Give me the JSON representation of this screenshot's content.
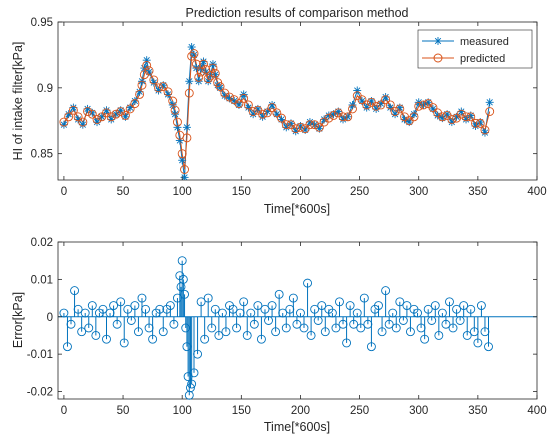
{
  "chart_data": [
    {
      "type": "line",
      "title": "Prediction results of comparison method",
      "xlabel": "Time[*600s]",
      "ylabel": "HI of intake filter[kPa]",
      "xlim": [
        -5,
        400
      ],
      "ylim": [
        0.83,
        0.95
      ],
      "xticks": [
        0,
        50,
        100,
        150,
        200,
        250,
        300,
        350,
        400
      ],
      "yticks": [
        0.85,
        0.9,
        0.95
      ],
      "ytick_labels": [
        "0.85",
        "0.9",
        "0.95"
      ],
      "grid": false,
      "legend_position": "top-right",
      "colors": {
        "measured": "#0072BD",
        "predicted": "#D95319"
      },
      "series": [
        {
          "name": "measured",
          "marker": "asterisk"
        },
        {
          "name": "predicted",
          "marker": "circle"
        }
      ],
      "x": [
        0,
        4,
        8,
        12,
        16,
        20,
        24,
        28,
        32,
        36,
        40,
        44,
        48,
        52,
        56,
        60,
        64,
        66,
        68,
        70,
        72,
        76,
        80,
        84,
        88,
        92,
        94,
        96,
        98,
        100,
        102,
        104,
        106,
        108,
        110,
        112,
        114,
        116,
        118,
        120,
        122,
        124,
        126,
        128,
        130,
        132,
        136,
        140,
        144,
        148,
        152,
        156,
        160,
        164,
        168,
        172,
        176,
        180,
        184,
        188,
        192,
        196,
        200,
        204,
        208,
        212,
        216,
        220,
        224,
        228,
        232,
        236,
        240,
        244,
        248,
        252,
        256,
        260,
        264,
        268,
        272,
        276,
        280,
        284,
        288,
        292,
        296,
        300,
        304,
        308,
        312,
        316,
        320,
        324,
        328,
        332,
        336,
        340,
        344,
        348,
        352,
        356,
        360
      ],
      "measured": [
        0.872,
        0.88,
        0.885,
        0.876,
        0.872,
        0.884,
        0.881,
        0.874,
        0.878,
        0.883,
        0.876,
        0.88,
        0.883,
        0.878,
        0.885,
        0.89,
        0.897,
        0.905,
        0.915,
        0.921,
        0.912,
        0.904,
        0.898,
        0.902,
        0.895,
        0.887,
        0.88,
        0.87,
        0.86,
        0.845,
        0.832,
        0.87,
        0.905,
        0.931,
        0.925,
        0.915,
        0.905,
        0.915,
        0.92,
        0.912,
        0.905,
        0.91,
        0.918,
        0.91,
        0.902,
        0.9,
        0.894,
        0.892,
        0.89,
        0.887,
        0.895,
        0.885,
        0.88,
        0.884,
        0.878,
        0.882,
        0.887,
        0.88,
        0.876,
        0.87,
        0.873,
        0.867,
        0.871,
        0.868,
        0.874,
        0.872,
        0.869,
        0.876,
        0.879,
        0.88,
        0.882,
        0.876,
        0.878,
        0.887,
        0.898,
        0.89,
        0.885,
        0.89,
        0.884,
        0.888,
        0.893,
        0.885,
        0.88,
        0.885,
        0.876,
        0.874,
        0.88,
        0.889,
        0.887,
        0.889,
        0.884,
        0.879,
        0.877,
        0.88,
        0.874,
        0.878,
        0.882,
        0.876,
        0.879,
        0.871,
        0.874,
        0.866,
        0.889
      ],
      "predicted": [
        0.874,
        0.878,
        0.883,
        0.878,
        0.874,
        0.882,
        0.88,
        0.876,
        0.878,
        0.881,
        0.878,
        0.88,
        0.882,
        0.879,
        0.884,
        0.888,
        0.895,
        0.902,
        0.91,
        0.917,
        0.913,
        0.906,
        0.9,
        0.901,
        0.897,
        0.89,
        0.883,
        0.874,
        0.864,
        0.85,
        0.838,
        0.862,
        0.896,
        0.924,
        0.926,
        0.918,
        0.908,
        0.912,
        0.918,
        0.914,
        0.907,
        0.909,
        0.915,
        0.911,
        0.904,
        0.901,
        0.896,
        0.893,
        0.891,
        0.888,
        0.892,
        0.887,
        0.882,
        0.883,
        0.88,
        0.881,
        0.885,
        0.881,
        0.877,
        0.872,
        0.872,
        0.869,
        0.87,
        0.869,
        0.872,
        0.872,
        0.87,
        0.874,
        0.877,
        0.879,
        0.881,
        0.878,
        0.878,
        0.884,
        0.894,
        0.891,
        0.887,
        0.889,
        0.886,
        0.887,
        0.891,
        0.887,
        0.882,
        0.884,
        0.878,
        0.875,
        0.878,
        0.886,
        0.887,
        0.888,
        0.885,
        0.881,
        0.878,
        0.879,
        0.876,
        0.877,
        0.88,
        0.878,
        0.878,
        0.873,
        0.873,
        0.868,
        0.882
      ]
    },
    {
      "type": "stem",
      "title": "",
      "xlabel": "Time[*600s]",
      "ylabel": "Error[kPa]",
      "xlim": [
        -5,
        400
      ],
      "ylim": [
        -0.022,
        0.02
      ],
      "xticks": [
        0,
        50,
        100,
        150,
        200,
        250,
        300,
        350,
        400
      ],
      "yticks": [
        -0.02,
        -0.01,
        0,
        0.01,
        0.02
      ],
      "ytick_labels": [
        "-0.02",
        "-0.01",
        "0",
        "0.01",
        "0.02"
      ],
      "grid": false,
      "colors": {
        "error": "#0072BD"
      },
      "series": [
        {
          "name": "",
          "x": [
            0,
            3,
            6,
            9,
            12,
            15,
            18,
            21,
            24,
            27,
            30,
            33,
            36,
            39,
            42,
            45,
            48,
            51,
            54,
            57,
            60,
            63,
            66,
            69,
            72,
            75,
            78,
            81,
            84,
            87,
            90,
            93,
            96,
            98,
            99,
            100,
            101,
            102,
            103,
            104,
            105,
            106,
            107,
            108,
            110,
            113,
            116,
            119,
            122,
            125,
            128,
            131,
            134,
            137,
            140,
            143,
            146,
            149,
            152,
            155,
            158,
            161,
            164,
            167,
            170,
            173,
            176,
            179,
            182,
            185,
            188,
            191,
            194,
            197,
            200,
            203,
            206,
            209,
            212,
            215,
            218,
            221,
            224,
            227,
            230,
            233,
            236,
            239,
            242,
            245,
            248,
            251,
            254,
            257,
            260,
            263,
            266,
            269,
            272,
            275,
            278,
            281,
            284,
            287,
            290,
            293,
            296,
            299,
            302,
            305,
            308,
            311,
            314,
            317,
            320,
            323,
            326,
            329,
            332,
            335,
            338,
            341,
            344,
            347,
            350,
            353,
            356,
            359
          ],
          "values": [
            0.001,
            -0.008,
            -0.002,
            0.007,
            0.002,
            -0.004,
            0.001,
            -0.003,
            0.003,
            -0.005,
            0.001,
            0.002,
            -0.006,
            0.001,
            0.003,
            -0.002,
            0.004,
            -0.007,
            0.002,
            -0.001,
            0.003,
            -0.004,
            0.005,
            0.002,
            -0.003,
            -0.006,
            0.001,
            0.002,
            -0.004,
            0.002,
            0.003,
            -0.002,
            0.005,
            0.011,
            0.008,
            0.015,
            0.01,
            0.006,
            -0.003,
            -0.008,
            -0.016,
            -0.021,
            -0.019,
            -0.018,
            -0.015,
            -0.01,
            0.004,
            -0.006,
            0.005,
            -0.003,
            0.002,
            -0.005,
            0.001,
            -0.004,
            0.003,
            0.002,
            -0.003,
            0.001,
            0.004,
            -0.005,
            0.001,
            -0.002,
            0.003,
            -0.006,
            0.002,
            -0.001,
            0.003,
            -0.004,
            0.006,
            0.001,
            -0.003,
            0.002,
            0.005,
            -0.002,
            0.001,
            -0.003,
            0.009,
            -0.005,
            0.002,
            -0.001,
            0.003,
            -0.004,
            0.002,
            0.001,
            -0.003,
            0.004,
            -0.002,
            -0.007,
            0.003,
            -0.002,
            0.001,
            -0.003,
            0.005,
            -0.002,
            -0.008,
            0.002,
            0.003,
            -0.004,
            0.007,
            -0.002,
            0.001,
            -0.003,
            0.004,
            -0.001,
            0.003,
            -0.004,
            0.002,
            0.001,
            -0.003,
            -0.006,
            0.002,
            -0.001,
            0.003,
            -0.005,
            0.001,
            -0.002,
            0.004,
            -0.003,
            0.002,
            -0.001,
            0.003,
            -0.005,
            0.002,
            -0.004,
            -0.007,
            0.003,
            -0.004,
            -0.008
          ]
        }
      ]
    }
  ]
}
